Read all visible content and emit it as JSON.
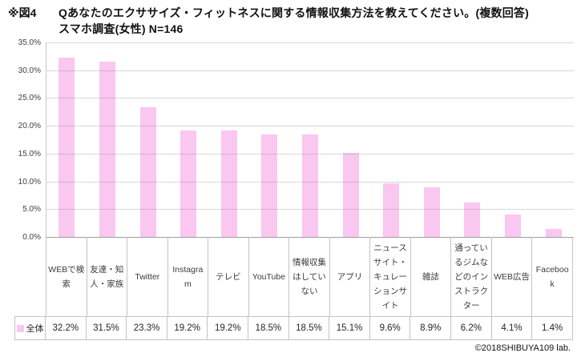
{
  "header": {
    "figure_label": "※図4",
    "title_line1": "Qあなたのエクササイズ・フィットネスに関する情報収集方法を教えてください。(複数回答)",
    "title_line2": "スマホ調査(女性) N=146"
  },
  "chart_data": {
    "type": "bar",
    "title": "Qあなたのエクササイズ・フィットネスに関する情報収集方法を教えてください。(複数回答) スマホ調査(女性) N=146",
    "categories": [
      "WEBで検索",
      "友達・知人・家族",
      "Twitter",
      "Instagram",
      "テレビ",
      "YouTube",
      "情報収集はしていない",
      "アプリ",
      "ニュースサイト・キュレーションサイト",
      "雑誌",
      "通っているジムなどのインストラクター",
      "WEB広告",
      "Facebook"
    ],
    "series": [
      {
        "name": "全体",
        "values": [
          32.2,
          31.5,
          23.3,
          19.2,
          19.2,
          18.5,
          18.5,
          15.1,
          9.6,
          8.9,
          6.2,
          4.1,
          1.4
        ]
      }
    ],
    "value_labels": [
      "32.2%",
      "31.5%",
      "23.3%",
      "19.2%",
      "19.2%",
      "18.5%",
      "18.5%",
      "15.1%",
      "9.6%",
      "8.9%",
      "6.2%",
      "4.1%",
      "1.4%"
    ],
    "ylim": [
      0,
      35
    ],
    "ytick_labels": [
      "35.0%",
      "30.0%",
      "25.0%",
      "20.0%",
      "15.0%",
      "10.0%",
      "5.0%",
      "0.0%"
    ],
    "grid": true,
    "legend_position": "bottom-left-table",
    "bar_color": "#F9C7F0"
  },
  "footer": {
    "copyright": "©2018SHIBUYA109 lab."
  }
}
